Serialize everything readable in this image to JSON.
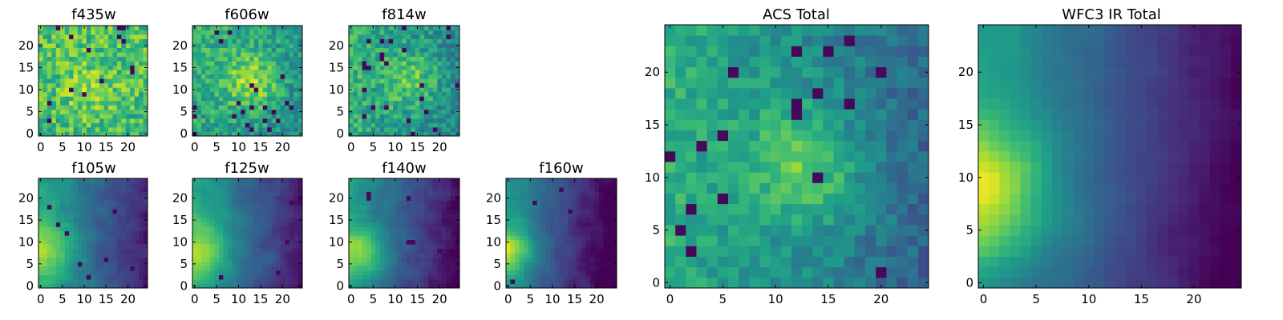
{
  "figure": {
    "colormap": "viridis",
    "grid_size": 25,
    "background": "#ffffff"
  },
  "chart_data": [
    {
      "type": "heatmap",
      "title": "f435w",
      "xlim": [
        0,
        24
      ],
      "ylim": [
        0,
        24
      ],
      "xticks": [
        0,
        5,
        10,
        15,
        20
      ],
      "yticks": [
        0,
        5,
        10,
        15,
        20
      ],
      "pattern": {
        "kind": "noisy",
        "seed": 11,
        "base": 0.68,
        "peak": [
          11,
          10
        ],
        "peak_amp": 0.12,
        "peak_w": 5,
        "gx": 0,
        "gy": 0.03,
        "noise": 0.36,
        "dark_prob": 0.03
      }
    },
    {
      "type": "heatmap",
      "title": "f606w",
      "xlim": [
        0,
        24
      ],
      "ylim": [
        0,
        24
      ],
      "xticks": [
        0,
        5,
        10,
        15,
        20
      ],
      "yticks": [
        0,
        5,
        10,
        15,
        20
      ],
      "pattern": {
        "kind": "noisy",
        "seed": 23,
        "base": 0.6,
        "peak": [
          13,
          12
        ],
        "peak_amp": 0.3,
        "peak_w": 4.5,
        "gx": -0.12,
        "gy": 0.05,
        "noise": 0.3,
        "dark_prob": 0.03
      }
    },
    {
      "type": "heatmap",
      "title": "f814w",
      "xlim": [
        0,
        24
      ],
      "ylim": [
        0,
        24
      ],
      "xticks": [
        0,
        5,
        10,
        15,
        20
      ],
      "yticks": [
        0,
        5,
        10,
        15,
        20
      ],
      "pattern": {
        "kind": "noisy",
        "seed": 37,
        "base": 0.62,
        "peak": [
          14,
          12
        ],
        "peak_amp": 0.22,
        "peak_w": 4.5,
        "gx": -0.18,
        "gy": 0.03,
        "noise": 0.3,
        "dark_prob": 0.04
      }
    },
    {
      "type": "heatmap",
      "title": "f105w",
      "xlim": [
        0,
        24
      ],
      "ylim": [
        0,
        24
      ],
      "xticks": [
        0,
        5,
        10,
        15,
        20
      ],
      "yticks": [
        0,
        5,
        10,
        15,
        20
      ],
      "pattern": {
        "kind": "smooth",
        "seed": 41,
        "base": 0.58,
        "peak": [
          1,
          8
        ],
        "peak_amp": 0.3,
        "peak_w": 5,
        "gx": -0.5,
        "gy": 0.02,
        "noise": 0.16,
        "dark_prob": 0.01
      }
    },
    {
      "type": "heatmap",
      "title": "f125w",
      "xlim": [
        0,
        24
      ],
      "ylim": [
        0,
        24
      ],
      "xticks": [
        0,
        5,
        10,
        15,
        20
      ],
      "yticks": [
        0,
        5,
        10,
        15,
        20
      ],
      "pattern": {
        "kind": "smooth",
        "seed": 53,
        "base": 0.58,
        "peak": [
          1,
          8
        ],
        "peak_amp": 0.28,
        "peak_w": 5,
        "gx": -0.5,
        "gy": 0.02,
        "noise": 0.14,
        "dark_prob": 0.01
      }
    },
    {
      "type": "heatmap",
      "title": "f140w",
      "xlim": [
        0,
        24
      ],
      "ylim": [
        0,
        24
      ],
      "xticks": [
        0,
        5,
        10,
        15,
        20
      ],
      "yticks": [
        0,
        5,
        10,
        15,
        20
      ],
      "pattern": {
        "kind": "smooth",
        "seed": 67,
        "base": 0.52,
        "peak": [
          1,
          8
        ],
        "peak_amp": 0.34,
        "peak_w": 4.5,
        "gx": -0.52,
        "gy": 0.04,
        "noise": 0.15,
        "dark_prob": 0.01
      }
    },
    {
      "type": "heatmap",
      "title": "f160w",
      "xlim": [
        0,
        24
      ],
      "ylim": [
        0,
        24
      ],
      "xticks": [
        0,
        5,
        10,
        15,
        20
      ],
      "yticks": [
        0,
        5,
        10,
        15,
        20
      ],
      "pattern": {
        "kind": "smooth",
        "seed": 79,
        "base": 0.5,
        "peak": [
          0,
          8
        ],
        "peak_amp": 0.4,
        "peak_w": 4,
        "gx": -0.58,
        "gy": 0.04,
        "noise": 0.14,
        "dark_prob": 0.01
      }
    },
    {
      "type": "heatmap",
      "title": "ACS Total",
      "xlim": [
        0,
        24
      ],
      "ylim": [
        0,
        24
      ],
      "xticks": [
        0,
        5,
        10,
        15,
        20
      ],
      "yticks": [
        0,
        5,
        10,
        15,
        20
      ],
      "pattern": {
        "kind": "noisy",
        "seed": 89,
        "base": 0.62,
        "peak": [
          13,
          11
        ],
        "peak_amp": 0.28,
        "peak_w": 4,
        "gx": -0.3,
        "gy": 0.02,
        "noise": 0.2,
        "dark_prob": 0.03
      }
    },
    {
      "type": "heatmap",
      "title": "WFC3 IR Total",
      "xlim": [
        0,
        24
      ],
      "ylim": [
        0,
        24
      ],
      "xticks": [
        0,
        5,
        10,
        15,
        20
      ],
      "yticks": [
        0,
        5,
        10,
        15,
        20
      ],
      "pattern": {
        "kind": "smooth",
        "seed": 97,
        "base": 0.52,
        "peak": [
          0,
          9
        ],
        "peak_amp": 0.42,
        "peak_w": 4.5,
        "gx": -0.55,
        "gy": 0.05,
        "noise": 0.08,
        "dark_prob": 0.0
      }
    }
  ]
}
